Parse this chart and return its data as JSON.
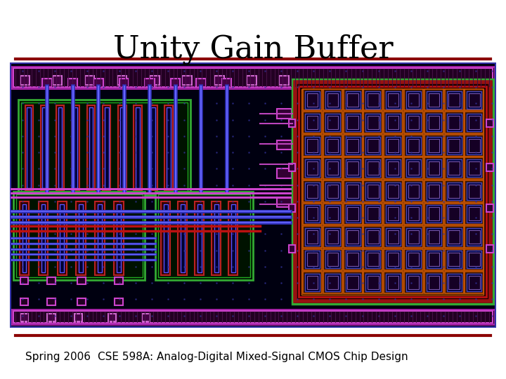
{
  "title": "Unity Gain Buffer",
  "title_fontsize": 32,
  "title_color": "#000000",
  "footer_left": "Spring 2006",
  "footer_right": "CSE 598A: Analog-Digital Mixed-Signal CMOS Chip Design",
  "footer_fontsize": 11,
  "separator_color": "#8B0000",
  "slide_bg": "#ffffff",
  "chip_bg": "#000010",
  "purple_border": "#CC44CC",
  "red_border": "#CC2222",
  "green_border": "#44AA44",
  "blue_line": "#4466FF",
  "dot_color": "#333399"
}
